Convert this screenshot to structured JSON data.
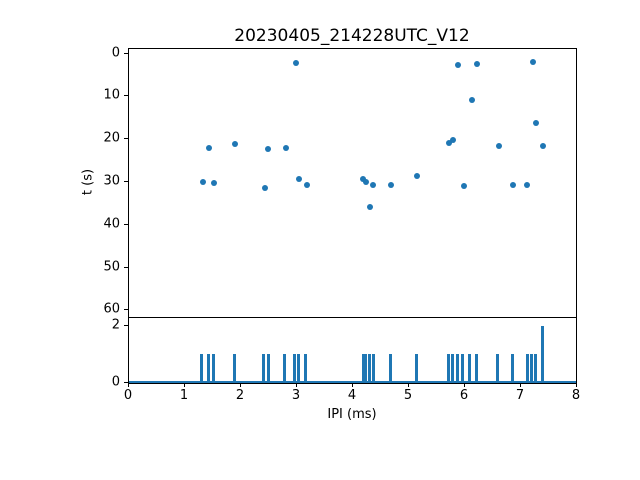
{
  "figure": {
    "title": "20230405_214228UTC_V12",
    "xlabel": "IPI (ms)",
    "ylabel": "t (s)",
    "accent_color": "#1f77b4",
    "axis_color": "#000000",
    "background_color": "#ffffff"
  },
  "chart_data": [
    {
      "type": "scatter",
      "title": "20230405_214228UTC_V12",
      "xlabel": "IPI (ms)",
      "ylabel": "t (s)",
      "xlim": [
        0,
        8
      ],
      "ylim": [
        62,
        -1
      ],
      "y_inverted": true,
      "grid": false,
      "legend": "none",
      "x_ticks": [
        0,
        1,
        2,
        3,
        4,
        5,
        6,
        7,
        8
      ],
      "y_ticks": [
        0,
        10,
        20,
        30,
        40,
        50,
        60
      ],
      "marker_color": "#1f77b4",
      "points": [
        [
          1.32,
          30.0
        ],
        [
          1.43,
          22.0
        ],
        [
          1.51,
          30.2
        ],
        [
          1.9,
          21.0
        ],
        [
          2.43,
          31.5
        ],
        [
          2.49,
          22.3
        ],
        [
          2.8,
          22.0
        ],
        [
          2.98,
          2.2
        ],
        [
          3.03,
          29.4
        ],
        [
          3.17,
          30.7
        ],
        [
          4.18,
          29.3
        ],
        [
          4.23,
          30.0
        ],
        [
          4.3,
          35.8
        ],
        [
          4.36,
          30.7
        ],
        [
          4.68,
          30.7
        ],
        [
          5.14,
          28.6
        ],
        [
          5.71,
          20.9
        ],
        [
          5.78,
          20.2
        ],
        [
          5.87,
          2.6
        ],
        [
          5.98,
          30.9
        ],
        [
          6.12,
          10.9
        ],
        [
          6.21,
          2.4
        ],
        [
          6.6,
          21.6
        ],
        [
          6.86,
          30.6
        ],
        [
          7.11,
          30.6
        ],
        [
          7.21,
          1.9
        ],
        [
          7.27,
          16.2
        ],
        [
          7.39,
          21.6
        ]
      ]
    },
    {
      "type": "bar",
      "xlabel": "IPI (ms)",
      "ylabel": "",
      "xlim": [
        0,
        8
      ],
      "ylim": [
        0,
        2.3
      ],
      "grid": false,
      "x_ticks": [
        0,
        1,
        2,
        3,
        4,
        5,
        6,
        7,
        8
      ],
      "y_ticks": [
        0,
        2
      ],
      "bar_color": "#1f77b4",
      "bars": [
        [
          1.3,
          1
        ],
        [
          1.42,
          1
        ],
        [
          1.5,
          1
        ],
        [
          1.88,
          1
        ],
        [
          2.41,
          1
        ],
        [
          2.49,
          1
        ],
        [
          2.78,
          1
        ],
        [
          2.96,
          1
        ],
        [
          3.02,
          1
        ],
        [
          3.15,
          1
        ],
        [
          4.18,
          1
        ],
        [
          4.23,
          1
        ],
        [
          4.3,
          1
        ],
        [
          4.36,
          1
        ],
        [
          4.67,
          1
        ],
        [
          5.13,
          1
        ],
        [
          5.7,
          1
        ],
        [
          5.78,
          1
        ],
        [
          5.87,
          1
        ],
        [
          5.96,
          1
        ],
        [
          6.08,
          1
        ],
        [
          6.21,
          1
        ],
        [
          6.58,
          1
        ],
        [
          6.84,
          1
        ],
        [
          7.11,
          1
        ],
        [
          7.19,
          1
        ],
        [
          7.25,
          1
        ],
        [
          7.38,
          2
        ]
      ]
    }
  ]
}
